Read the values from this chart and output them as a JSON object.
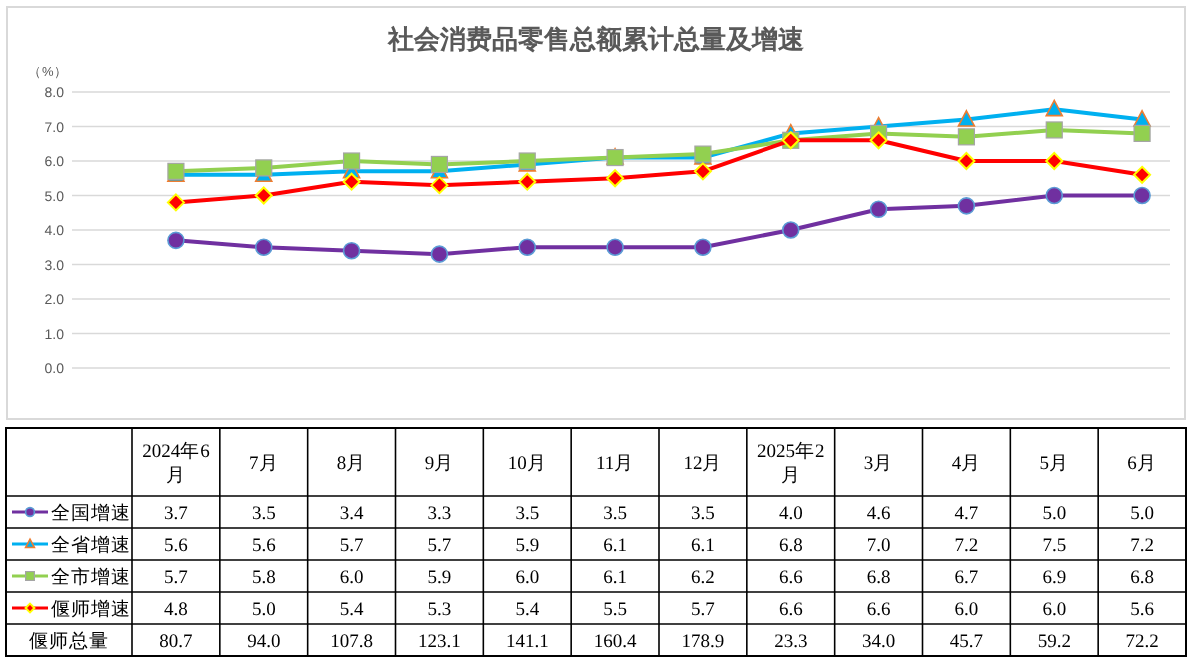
{
  "chart_data": {
    "type": "line",
    "title": "社会消费品零售总额累计总量及增速",
    "ylabel": "（%）",
    "categories": [
      "2024年6月",
      "7月",
      "8月",
      "9月",
      "10月",
      "11月",
      "12月",
      "2025年2月",
      "3月",
      "4月",
      "5月",
      "6月"
    ],
    "ylim": [
      0,
      8
    ],
    "yticks": [
      {
        "value": 0,
        "label": "0.0"
      },
      {
        "value": 1,
        "label": "1.0"
      },
      {
        "value": 2,
        "label": "2.0"
      },
      {
        "value": 3,
        "label": "3.0"
      },
      {
        "value": 4,
        "label": "4.0"
      },
      {
        "value": 5,
        "label": "5.0"
      },
      {
        "value": 6,
        "label": "6.0"
      },
      {
        "value": 7,
        "label": "7.0"
      },
      {
        "value": 8,
        "label": "8.0"
      }
    ],
    "grid": "y",
    "legend": "bottom",
    "annotations": [
      "偃师总量",
      "80.7",
      "94.0",
      "107.8",
      "123.1",
      "141.1",
      "160.4",
      "178.9",
      "23.3",
      "34.0",
      "45.7",
      "59.2",
      "72.2"
    ],
    "series": [
      {
        "name": "全国增速",
        "color": "#7030a0",
        "marker": "circle",
        "values": [
          3.7,
          3.5,
          3.4,
          3.3,
          3.5,
          3.5,
          3.5,
          4.0,
          4.6,
          4.7,
          5.0,
          5.0
        ],
        "value_labels": [
          "3.7",
          "3.5",
          "3.4",
          "3.3",
          "3.5",
          "3.5",
          "3.5",
          "4.0",
          "4.6",
          "4.7",
          "5.0",
          "5.0"
        ]
      },
      {
        "name": "全省增速",
        "color": "#00b0f0",
        "marker": "triangle",
        "values": [
          5.6,
          5.6,
          5.7,
          5.7,
          5.9,
          6.1,
          6.1,
          6.8,
          7.0,
          7.2,
          7.5,
          7.2
        ],
        "value_labels": [
          "5.6",
          "5.6",
          "5.7",
          "5.7",
          "5.9",
          "6.1",
          "6.1",
          "6.8",
          "7.0",
          "7.2",
          "7.5",
          "7.2"
        ]
      },
      {
        "name": "全市增速",
        "color": "#92d050",
        "marker": "square",
        "values": [
          5.7,
          5.8,
          6.0,
          5.9,
          6.0,
          6.1,
          6.2,
          6.6,
          6.8,
          6.7,
          6.9,
          6.8
        ],
        "value_labels": [
          "5.7",
          "5.8",
          "6.0",
          "5.9",
          "6.0",
          "6.1",
          "6.2",
          "6.6",
          "6.8",
          "6.7",
          "6.9",
          "6.8"
        ]
      },
      {
        "name": "偃师增速",
        "color": "#ff0000",
        "marker": "diamond",
        "values": [
          4.8,
          5.0,
          5.4,
          5.3,
          5.4,
          5.5,
          5.7,
          6.6,
          6.6,
          6.0,
          6.0,
          5.6
        ],
        "value_labels": [
          "4.8",
          "5.0",
          "5.4",
          "5.3",
          "5.4",
          "5.5",
          "5.7",
          "6.6",
          "6.6",
          "6.0",
          "6.0",
          "5.6"
        ]
      }
    ]
  }
}
